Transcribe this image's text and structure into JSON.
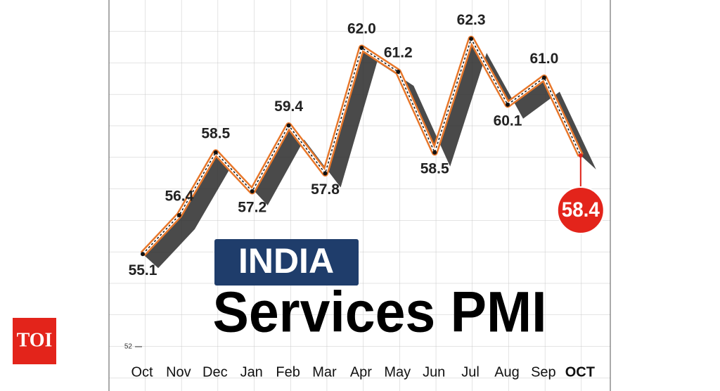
{
  "chart_data": {
    "type": "line",
    "title": "Services PMI",
    "subtitle": "INDIA",
    "categories": [
      "Oct",
      "Nov",
      "Dec",
      "Jan",
      "Feb",
      "Mar",
      "Apr",
      "May",
      "Jun",
      "Jul",
      "Aug",
      "Sep",
      "OCT"
    ],
    "series": [
      {
        "name": "Services PMI",
        "color": "#e8772a",
        "values": [
          55.1,
          56.4,
          58.5,
          57.2,
          59.4,
          57.8,
          62.0,
          61.2,
          58.5,
          62.3,
          60.1,
          61.0,
          58.4
        ],
        "value_labels": [
          "55.1",
          "56.4",
          "58.5",
          "57.2",
          "59.4",
          "57.8",
          "62.0",
          "61.2",
          "58.5",
          "62.3",
          "60.1",
          "61.0",
          "58.4"
        ]
      }
    ],
    "highlight_color": "#e3241b",
    "ylim": [
      52,
      63.6
    ],
    "yticks": [
      52
    ],
    "grid": true
  },
  "logo": "TOI"
}
